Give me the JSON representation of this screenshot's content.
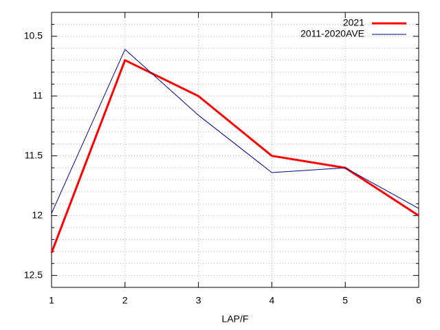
{
  "chart_data": {
    "type": "line",
    "x_label": "LAP/F",
    "x": [
      1,
      2,
      3,
      4,
      5,
      6
    ],
    "series": [
      {
        "name": "2021",
        "color": "#ff0000",
        "width": 3,
        "values": [
          12.31,
          10.7,
          11.0,
          11.5,
          11.6,
          12.0
        ]
      },
      {
        "name": "2011-2020AVE",
        "color": "#00008b",
        "width": 1,
        "values": [
          11.98,
          10.61,
          11.16,
          11.64,
          11.6,
          11.94
        ]
      }
    ],
    "xlim": [
      1,
      6
    ],
    "xticks": [
      1,
      2,
      3,
      4,
      5,
      6
    ],
    "ylim": [
      12.6,
      10.3
    ],
    "yticks": [
      10.5,
      11,
      11.5,
      12,
      12.5
    ],
    "yminorticks": [
      10.4,
      10.6,
      10.7,
      10.8,
      10.9,
      11.1,
      11.2,
      11.3,
      11.4,
      11.6,
      11.7,
      11.8,
      11.9,
      12.1,
      12.2,
      12.3,
      12.4
    ],
    "grid": true,
    "legend": "top-right"
  }
}
